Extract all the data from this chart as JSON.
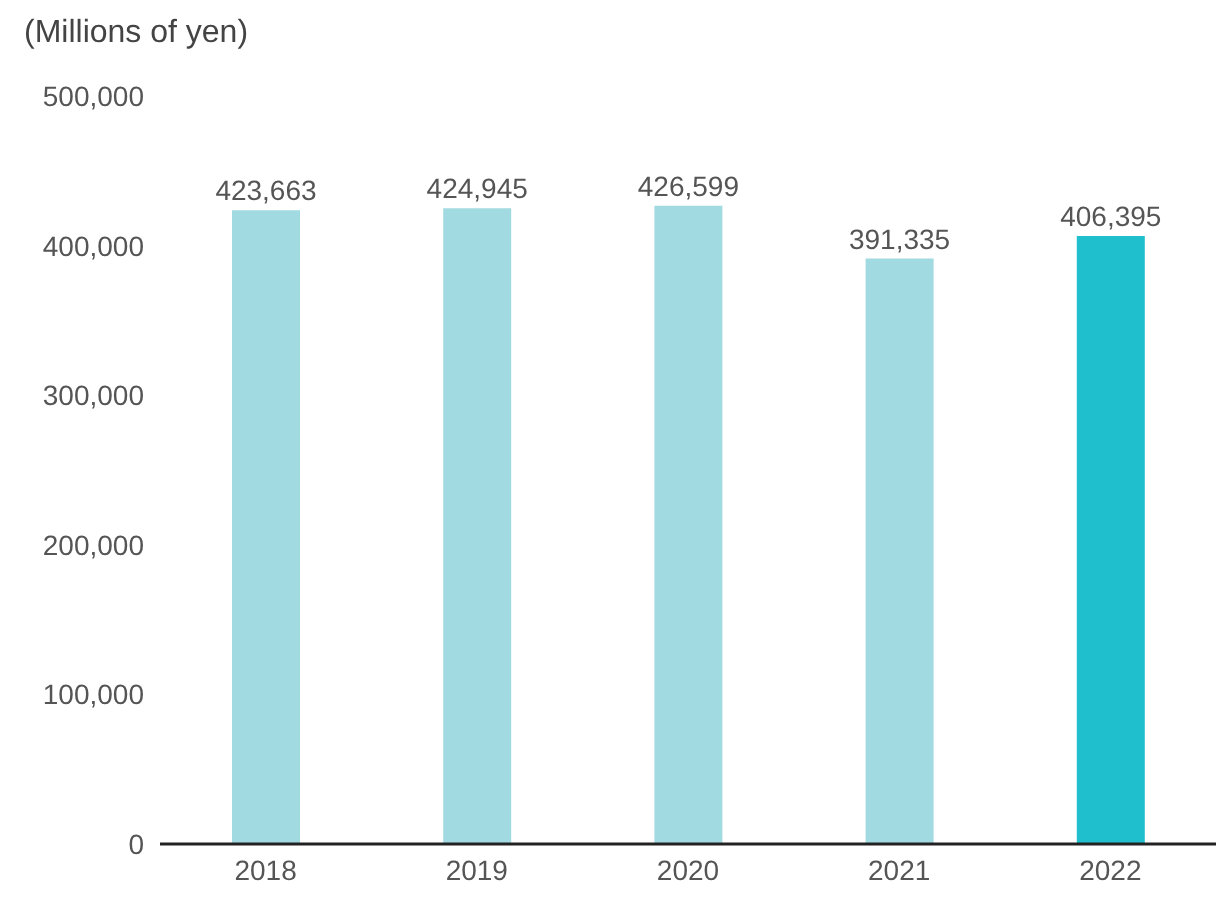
{
  "chart_data": {
    "type": "bar",
    "ylabel": "(Millions of yen)",
    "categories": [
      "2018",
      "2019",
      "2020",
      "2021",
      "2022"
    ],
    "values": [
      423663,
      424945,
      426599,
      391335,
      406395
    ],
    "value_labels": [
      "423,663",
      "424,945",
      "426,599",
      "391,335",
      "406,395"
    ],
    "colors": [
      "#a2dae2",
      "#a2dae2",
      "#a2dae2",
      "#a2dae2",
      "#20bfcd"
    ],
    "ylim": [
      0,
      500000
    ],
    "yticks": [
      0,
      {
        "value": 100000,
        "label": "100,000"
      },
      {
        "value": 200000,
        "label": "200,000"
      },
      {
        "value": 300000,
        "label": "300,000"
      },
      {
        "value": 400000,
        "label": "400,000"
      },
      {
        "value": 500000,
        "label": "500,000"
      }
    ]
  }
}
